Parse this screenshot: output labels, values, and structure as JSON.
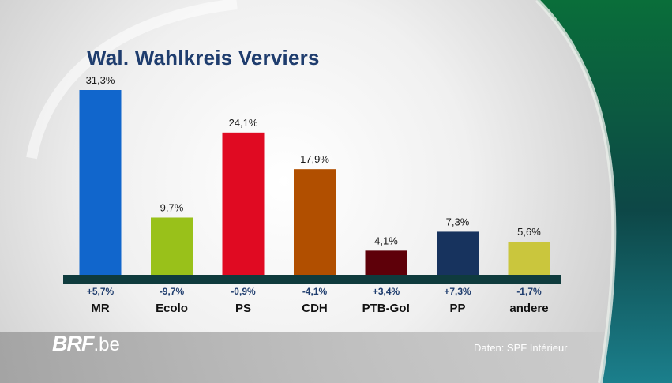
{
  "title": "Wal. Wahlkreis Verviers",
  "logo": {
    "brand": "BRF",
    "tld": ".be"
  },
  "source": "Daten: SPF Intérieur",
  "colors": {
    "background_light": "#f2f2f2",
    "background_mid": "#c9c9c9",
    "accent_green": "#0a6e3a",
    "accent_teal": "#1b7f8c",
    "baseline": "#0f3b3d",
    "title": "#1f3d6e",
    "change_label": "#1f3d6e"
  },
  "chart_data": {
    "type": "bar",
    "title": "Wal. Wahlkreis Verviers",
    "xlabel": "",
    "ylabel": "",
    "ylim": [
      0,
      31.3
    ],
    "grid": false,
    "legend": "none",
    "categories": [
      "MR",
      "Ecolo",
      "PS",
      "CDH",
      "PTB-Go!",
      "PP",
      "andere"
    ],
    "values": [
      31.3,
      9.7,
      24.1,
      17.9,
      4.1,
      7.3,
      5.6
    ],
    "value_labels": [
      "31,3%",
      "9,7%",
      "24,1%",
      "17,9%",
      "4,1%",
      "7,3%",
      "5,6%"
    ],
    "change_labels": [
      "+5,7%",
      "-9,7%",
      "-0,9%",
      "-4,1%",
      "+3,4%",
      "+7,3%",
      "-1,7%"
    ],
    "bar_colors": [
      "#1166cc",
      "#99c11a",
      "#e00a22",
      "#b14f00",
      "#5e0009",
      "#17335e",
      "#cac63d"
    ]
  }
}
